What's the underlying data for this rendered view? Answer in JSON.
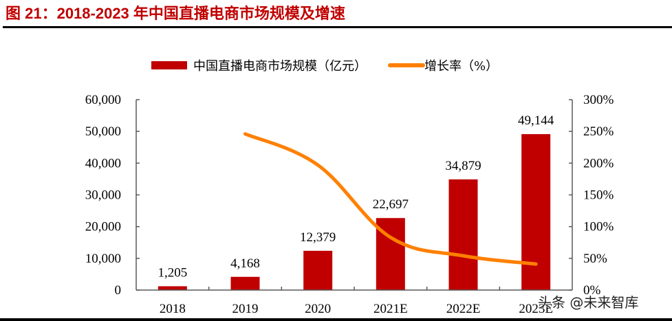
{
  "figure": {
    "title": "图 21：2018-2023 年中国直播电商市场规模及增速",
    "watermark": "头条 @未来智库"
  },
  "colors": {
    "bar": "#c00000",
    "line": "#ff8000",
    "title": "#c00000",
    "axis": "#595959"
  },
  "chart_data": {
    "type": "bar+line",
    "title": "2018-2023 年中国直播电商市场规模及增速",
    "categories": [
      "2018",
      "2019",
      "2020",
      "2021E",
      "2022E",
      "2023E"
    ],
    "series": [
      {
        "name": "中国直播电商市场规模（亿元）",
        "type": "bar",
        "axis": "left",
        "values": [
          1205,
          4168,
          12379,
          22697,
          34879,
          49144
        ],
        "labels": [
          "1,205",
          "4,168",
          "12,379",
          "22,697",
          "34,879",
          "49,144"
        ]
      },
      {
        "name": "增长率（%）",
        "type": "line",
        "axis": "right",
        "values": [
          null,
          246,
          197,
          83,
          54,
          41
        ]
      }
    ],
    "y_left": {
      "ylim": [
        0,
        60000
      ],
      "ticks": [
        0,
        10000,
        20000,
        30000,
        40000,
        50000,
        60000
      ],
      "tick_labels": [
        "0",
        "10,000",
        "20,000",
        "30,000",
        "40,000",
        "50,000",
        "60,000"
      ]
    },
    "y_right": {
      "ylim": [
        0,
        300
      ],
      "ticks": [
        0,
        50,
        100,
        150,
        200,
        250,
        300
      ],
      "tick_labels": [
        "0%",
        "50%",
        "100%",
        "150%",
        "200%",
        "250%",
        "300%"
      ]
    },
    "xlabel": "",
    "grid": false,
    "legend": {
      "position": "top",
      "entries": [
        "中国直播电商市场规模（亿元）",
        "增长率（%）"
      ]
    }
  }
}
